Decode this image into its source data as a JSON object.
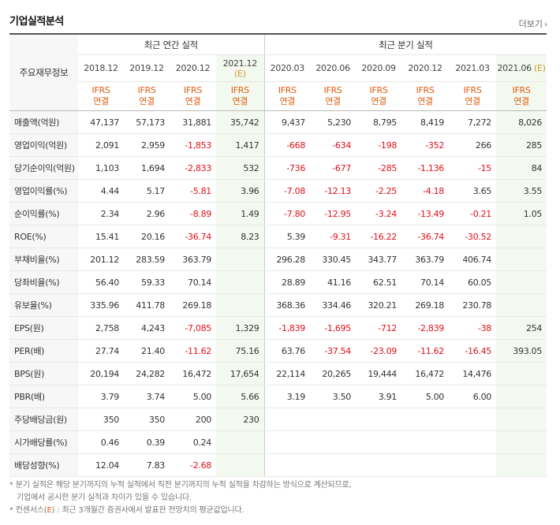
{
  "header": {
    "title": "기업실적분석",
    "more_label": "더보기",
    "chevron": "›"
  },
  "table": {
    "row_head": "주요재무정보",
    "annual_group": "최근 연간 실적",
    "quarter_group": "최근 분기 실적",
    "periods": [
      "2018.12",
      "2019.12",
      "2020.12",
      "2021.12",
      "2020.03",
      "2020.06",
      "2020.09",
      "2020.12",
      "2021.03",
      "2021.06"
    ],
    "estimate_mark": "(E)",
    "basis_line1": "IFRS",
    "basis_line2": "연결",
    "rows": [
      {
        "label": "매출액(억원)",
        "values": [
          "47,137",
          "57,173",
          "31,881",
          "35,742",
          "9,437",
          "5,230",
          "8,795",
          "8,419",
          "7,272",
          "8,026"
        ]
      },
      {
        "label": "영업이익(억원)",
        "values": [
          "2,091",
          "2,959",
          "-1,853",
          "1,417",
          "-668",
          "-634",
          "-198",
          "-352",
          "266",
          "285"
        ]
      },
      {
        "label": "당기순이익(억원)",
        "values": [
          "1,103",
          "1,694",
          "-2,833",
          "532",
          "-736",
          "-677",
          "-285",
          "-1,136",
          "-15",
          "84"
        ]
      },
      {
        "label": "영업이익률(%)",
        "values": [
          "4.44",
          "5.17",
          "-5.81",
          "3.96",
          "-7.08",
          "-12.13",
          "-2.25",
          "-4.18",
          "3.65",
          "3.55"
        ]
      },
      {
        "label": "순이익률(%)",
        "values": [
          "2.34",
          "2.96",
          "-8.89",
          "1.49",
          "-7.80",
          "-12.95",
          "-3.24",
          "-13.49",
          "-0.21",
          "1.05"
        ]
      },
      {
        "label": "ROE(%)",
        "values": [
          "15.41",
          "20.16",
          "-36.74",
          "8.23",
          "5.39",
          "-9.31",
          "-16.22",
          "-36.74",
          "-30.52",
          ""
        ]
      },
      {
        "label": "부채비율(%)",
        "values": [
          "201.12",
          "283.59",
          "363.79",
          "",
          "296.28",
          "330.45",
          "343.77",
          "363.79",
          "406.74",
          ""
        ]
      },
      {
        "label": "당좌비율(%)",
        "values": [
          "56.40",
          "59.33",
          "70.14",
          "",
          "28.89",
          "41.16",
          "62.51",
          "70.14",
          "60.05",
          ""
        ]
      },
      {
        "label": "유보율(%)",
        "values": [
          "335.96",
          "411.78",
          "269.18",
          "",
          "368.36",
          "334.46",
          "320.21",
          "269.18",
          "230.78",
          ""
        ]
      },
      {
        "label": "EPS(원)",
        "values": [
          "2,758",
          "4,243",
          "-7,085",
          "1,329",
          "-1,839",
          "-1,695",
          "-712",
          "-2,839",
          "-38",
          "254"
        ]
      },
      {
        "label": "PER(배)",
        "values": [
          "27.74",
          "21.40",
          "-11.62",
          "75.16",
          "63.76",
          "-37.54",
          "-23.09",
          "-11.62",
          "-16.45",
          "393.05"
        ]
      },
      {
        "label": "BPS(원)",
        "values": [
          "20,194",
          "24,282",
          "16,472",
          "17,654",
          "22,114",
          "20,265",
          "19,444",
          "16,472",
          "14,476",
          ""
        ]
      },
      {
        "label": "PBR(배)",
        "values": [
          "3.79",
          "3.74",
          "5.00",
          "5.66",
          "3.19",
          "3.50",
          "3.91",
          "5.00",
          "6.00",
          ""
        ]
      },
      {
        "label": "주당배당금(원)",
        "values": [
          "350",
          "350",
          "200",
          "230",
          "",
          "",
          "",
          "",
          "",
          ""
        ]
      },
      {
        "label": "시가배당률(%)",
        "values": [
          "0.46",
          "0.39",
          "0.24",
          "",
          "",
          "",
          "",
          "",
          "",
          ""
        ]
      },
      {
        "label": "배당성향(%)",
        "values": [
          "12.04",
          "7.83",
          "-2.68",
          "",
          "",
          "",
          "",
          "",
          "",
          ""
        ]
      }
    ]
  },
  "notes": {
    "bullet": "*",
    "note1": "분기 실적은 해당 분기까지의 누적 실적에서 직전 분기까지의 누적 실적을 차감하는 방식으로 계산되므로,",
    "note1b": "기업에서 공시한 분기 실적과 차이가 있을 수 있습니다.",
    "note2_pre": "컨센서스(",
    "note2_mark": "E",
    "note2_post": ") : 최근 3개월간 증권사에서 발표한 전망치의 평균값입니다."
  },
  "colors": {
    "negative": "#e0101a",
    "basis": "#e05a10",
    "consensus_bg": "#f4f9ef"
  }
}
